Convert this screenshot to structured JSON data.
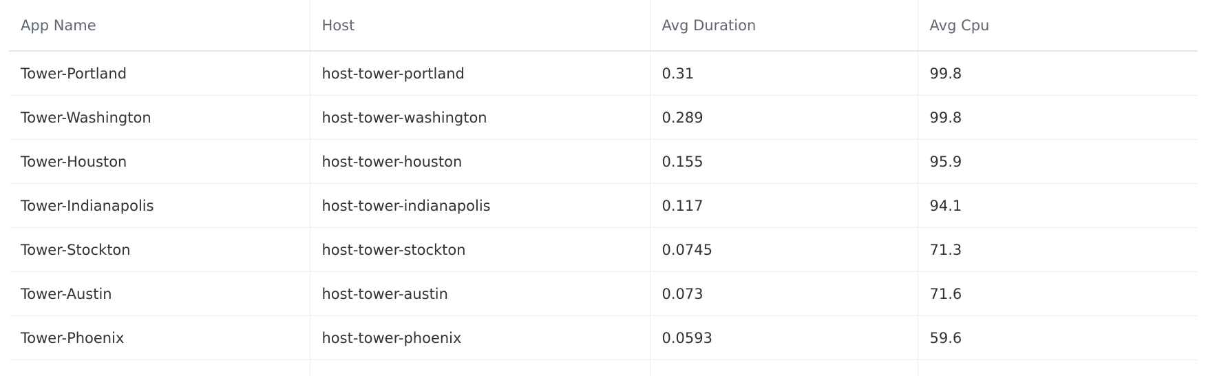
{
  "table": {
    "columns": [
      "App Name",
      "Host",
      "Avg Duration",
      "Avg Cpu"
    ],
    "rows": [
      [
        "Tower-Portland",
        "host-tower-portland",
        0.31,
        99.8
      ],
      [
        "Tower-Washington",
        "host-tower-washington",
        0.289,
        99.8
      ],
      [
        "Tower-Houston",
        "host-tower-houston",
        0.155,
        95.9
      ],
      [
        "Tower-Indianapolis",
        "host-tower-indianapolis",
        0.117,
        94.1
      ],
      [
        "Tower-Stockton",
        "host-tower-stockton",
        0.0745,
        71.3
      ],
      [
        "Tower-Austin",
        "host-tower-austin",
        0.073,
        71.6
      ],
      [
        "Tower-Phoenix",
        "host-tower-phoenix",
        0.0593,
        59.6
      ]
    ]
  }
}
